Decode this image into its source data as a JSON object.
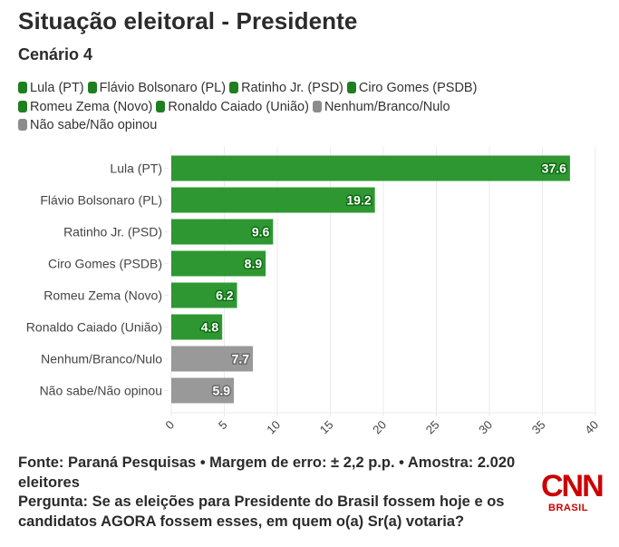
{
  "header": {
    "title": "Situação eleitoral - Presidente",
    "subtitle": "Cenário 4"
  },
  "colors": {
    "candidate": "#2e9732",
    "other": "#999999",
    "label_outline_candidate": "#0d6b12",
    "label_outline_other": "#6b6b6b",
    "grid": "#ebebeb",
    "brand": "#cc0000"
  },
  "legend": [
    {
      "label": "Lula (PT)",
      "color": "#1d7f1f"
    },
    {
      "label": "Flávio Bolsonaro (PL)",
      "color": "#1d7f1f"
    },
    {
      "label": "Ratinho Jr. (PSD)",
      "color": "#1d7f1f"
    },
    {
      "label": "Ciro Gomes (PSDB)",
      "color": "#1d7f1f"
    },
    {
      "label": "Romeu Zema (Novo)",
      "color": "#1d7f1f"
    },
    {
      "label": "Ronaldo Caiado (União)",
      "color": "#1d7f1f"
    },
    {
      "label": "Nenhum/Branco/Nulo",
      "color": "#8c8c8c"
    },
    {
      "label": "Não sabe/Não opinou",
      "color": "#8c8c8c"
    }
  ],
  "chart_data": {
    "type": "bar",
    "orientation": "horizontal",
    "title": "Situação eleitoral - Presidente",
    "subtitle": "Cenário 4",
    "xlabel": "",
    "ylabel": "",
    "categories": [
      "Lula (PT)",
      "Flávio Bolsonaro (PL)",
      "Ratinho Jr. (PSD)",
      "Ciro Gomes (PSDB)",
      "Romeu Zema (Novo)",
      "Ronaldo Caiado (União)",
      "Nenhum/Branco/Nulo",
      "Não sabe/Não opinou"
    ],
    "values": [
      37.6,
      19.2,
      9.6,
      8.9,
      6.2,
      4.8,
      7.7,
      5.9
    ],
    "value_labels": [
      "37.6",
      "19.2",
      "9.6",
      "8.9",
      "6.2",
      "4.8",
      "7.7",
      "5.9"
    ],
    "groups": [
      "candidate",
      "candidate",
      "candidate",
      "candidate",
      "candidate",
      "candidate",
      "other",
      "other"
    ],
    "xlim": [
      0,
      40
    ],
    "xticks": [
      0,
      5,
      10,
      15,
      20,
      25,
      30,
      35,
      40
    ],
    "xtick_labels": [
      "0",
      "5",
      "10",
      "15",
      "20",
      "25",
      "30",
      "35",
      "40"
    ],
    "grid": "vertical",
    "legend_position": "top-left"
  },
  "footer": {
    "source": "Fonte: Paraná Pesquisas • Margem de erro: ± 2,2 p.p. • Amostra: 2.020 eleitores",
    "question": "Pergunta: Se as eleições para Presidente do Brasil fossem hoje e os candidatos AGORA fossem esses, em quem o(a) Sr(a) votaria?"
  },
  "logo": {
    "name": "CNN",
    "sub": "BRASIL"
  }
}
